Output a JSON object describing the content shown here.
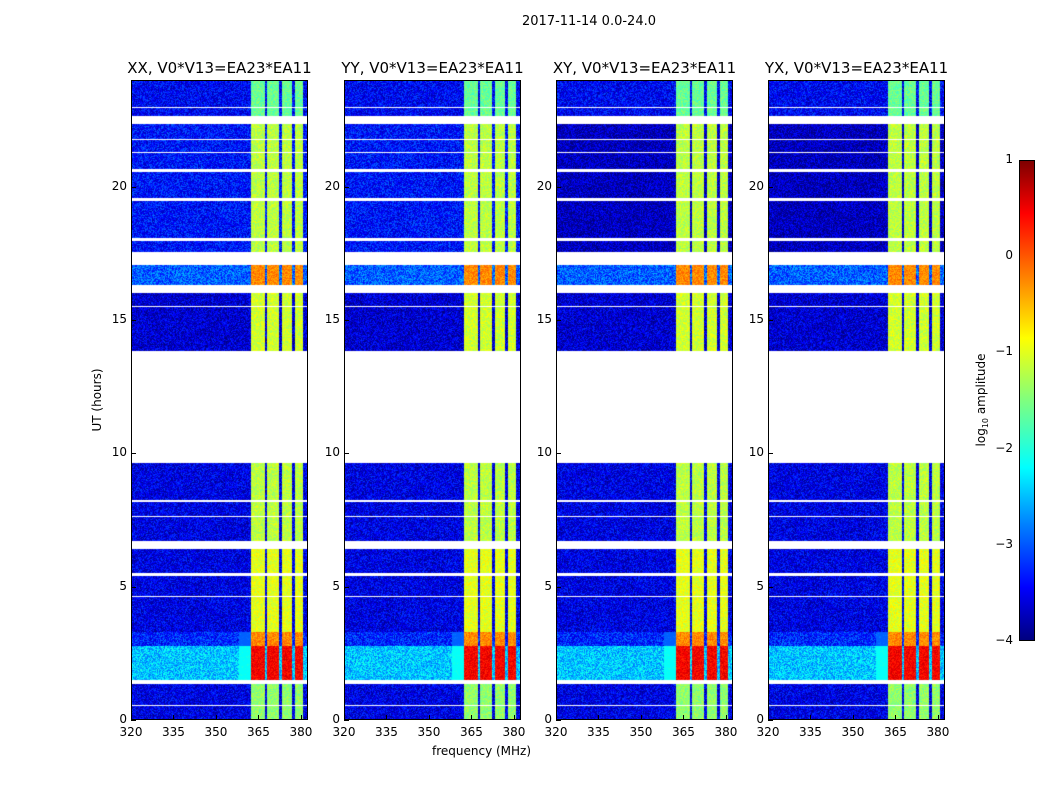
{
  "chart_data": {
    "type": "heatmap",
    "title": "2017-11-14 0.0-24.0",
    "xlabel": "frequency (MHz)",
    "ylabel": "UT (hours)",
    "xlim": [
      320,
      382.5
    ],
    "ylim": [
      0,
      24
    ],
    "xticks": [
      "320",
      "335",
      "350",
      "365",
      "380"
    ],
    "xtick_values": [
      320,
      335,
      350,
      365,
      380
    ],
    "yticks": [
      "0",
      "5",
      "10",
      "15",
      "20"
    ],
    "ytick_values": [
      0,
      5,
      10,
      15,
      20
    ],
    "panels": [
      {
        "title": "XX, V0*V13=EA23*EA11",
        "pol": "XX"
      },
      {
        "title": "YY, V0*V13=EA23*EA11",
        "pol": "YY"
      },
      {
        "title": "XY, V0*V13=EA23*EA11",
        "pol": "XY"
      },
      {
        "title": "YX, V0*V13=EA23*EA11",
        "pol": "YX"
      }
    ],
    "colorbar": {
      "label": "log10 amplitude",
      "label_main": "log",
      "label_sub": "10",
      "label_rest": " amplitude",
      "range": [
        -4,
        1
      ],
      "ticks": [
        "1",
        "0",
        "−1",
        "−2",
        "−3",
        "−4"
      ],
      "tick_values": [
        1,
        0,
        -1,
        -2,
        -3,
        -4
      ],
      "colormap": "jet"
    },
    "flagged_hours": [
      [
        22.4,
        22.65
      ],
      [
        17.1,
        17.6
      ],
      [
        16.05,
        16.35
      ],
      [
        13.85,
        9.65
      ],
      [
        6.4,
        6.7
      ],
      [
        5.4,
        5.5
      ],
      [
        1.35,
        1.5
      ],
      [
        23.0,
        23.05
      ],
      [
        21.8,
        21.85
      ],
      [
        21.3,
        21.35
      ],
      [
        20.6,
        20.7
      ],
      [
        19.5,
        19.6
      ],
      [
        18.0,
        18.1
      ],
      [
        15.5,
        15.55
      ],
      [
        8.2,
        8.25
      ],
      [
        7.6,
        7.65
      ],
      [
        4.6,
        4.65
      ],
      [
        0.5,
        0.55
      ]
    ],
    "rfi_bands_mhz": [
      [
        362.5,
        367.2
      ],
      [
        368.0,
        372.3
      ],
      [
        373.5,
        377.0
      ],
      [
        378.0,
        381.0
      ]
    ],
    "segments": [
      {
        "hours": [
          22.7,
          24
        ],
        "base": -3.4,
        "rfi": -1.6
      },
      {
        "hours": [
          17.6,
          22.4
        ],
        "base": -3.3,
        "rfi": -1.2
      },
      {
        "hours": [
          16.35,
          17.1
        ],
        "base": -2.9,
        "rfi": -0.3
      },
      {
        "hours": [
          13.85,
          16.05
        ],
        "base": -3.6,
        "rfi": -1.1
      },
      {
        "hours": [
          6.7,
          9.65
        ],
        "base": -3.5,
        "rfi": -1.2
      },
      {
        "hours": [
          3.3,
          6.4
        ],
        "base": -3.5,
        "rfi": -1.0
      },
      {
        "hours": [
          2.75,
          3.3
        ],
        "base": -3.2,
        "rfi": -0.3
      },
      {
        "hours": [
          1.5,
          2.75
        ],
        "base": -2.4,
        "rfi": 0.4
      },
      {
        "hours": [
          0,
          1.35
        ],
        "base": -3.5,
        "rfi": -1.4
      }
    ]
  }
}
